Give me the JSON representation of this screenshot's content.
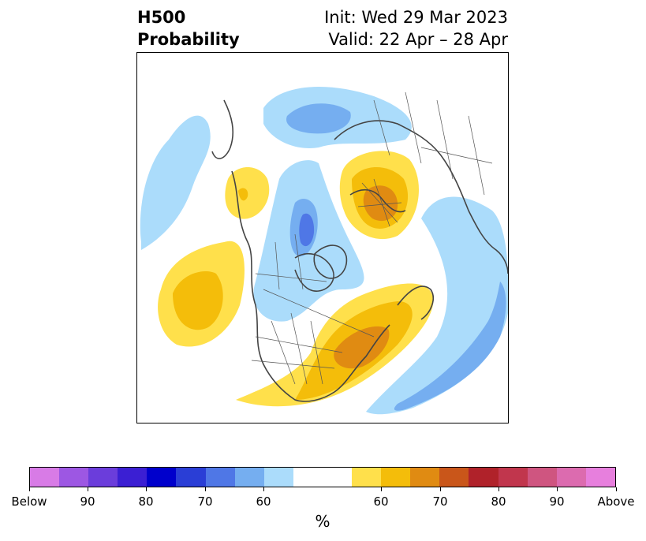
{
  "title": {
    "left_line1": "H500",
    "left_line2": "Probability",
    "right_line1": "Init: Wed 29 Mar 2023",
    "right_line2": "Valid: 22 Apr – 28 Apr"
  },
  "colorbar": {
    "unit": "%",
    "colors": [
      "#d87be6",
      "#9d57e3",
      "#6b3ddb",
      "#3b1fd3",
      "#0000cc",
      "#2a3ed6",
      "#4f77e6",
      "#75aef0",
      "#abdcfb",
      "#ffffff",
      "#ffffff",
      "#ffe04b",
      "#f4bd0a",
      "#e08b12",
      "#c9561a",
      "#b0222a",
      "#c1364d",
      "#cf5580",
      "#dc6baf",
      "#e77fdd"
    ],
    "tick_labels": [
      "Below",
      "90",
      "80",
      "70",
      "60",
      "60",
      "70",
      "80",
      "90",
      "Above"
    ]
  },
  "map": {
    "colors": {
      "light_blue": "#abdcfb",
      "mid_blue": "#75aef0",
      "blue": "#4f77e6",
      "yellow": "#ffe04b",
      "gold": "#f4bd0a",
      "orange": "#e08b12",
      "coast": "#444444"
    }
  }
}
